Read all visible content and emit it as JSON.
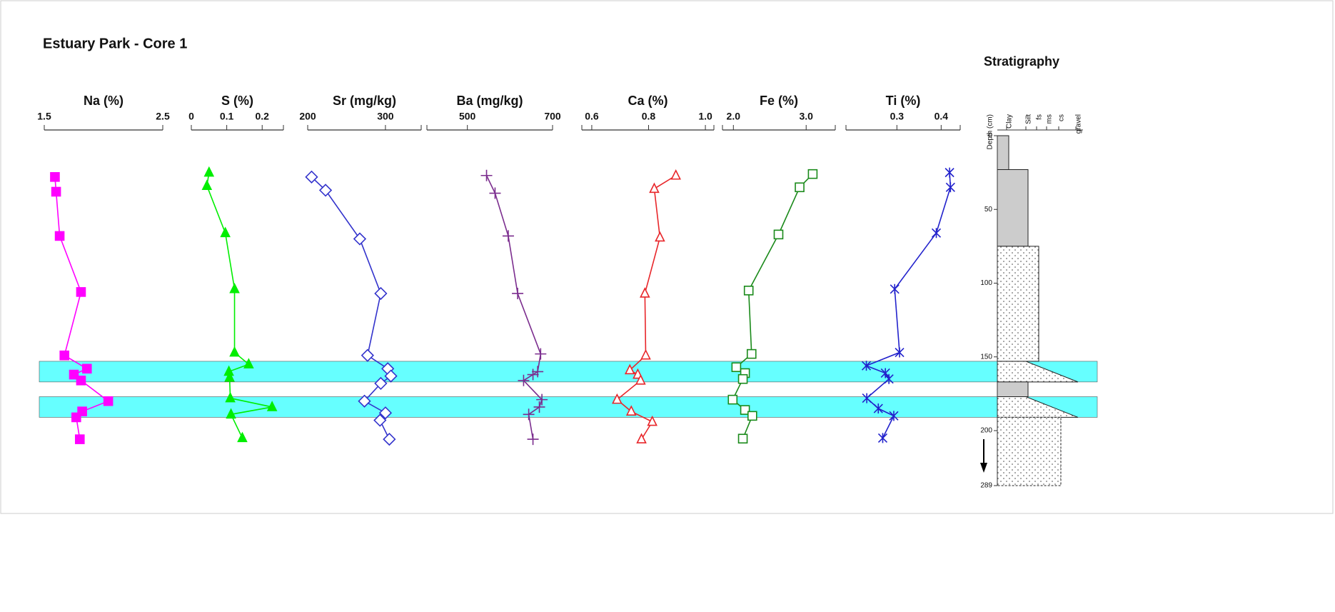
{
  "title": "Estuary Park - Core 1",
  "chart_data": [
    {
      "type": "line",
      "title": "Na (%)",
      "xlim": [
        1.5,
        2.5
      ],
      "xticks": [
        1.5,
        2.5
      ],
      "ylim": [
        0,
        289
      ],
      "color": "#ff00ff",
      "marker": "square-filled",
      "y": [
        28,
        38,
        68,
        106,
        149,
        158,
        162,
        166,
        180,
        187,
        191,
        214
      ],
      "values": [
        1.59,
        1.6,
        1.63,
        1.81,
        1.67,
        1.86,
        1.75,
        1.81,
        2.04,
        1.82,
        1.77,
        1.8
      ]
    },
    {
      "type": "line",
      "title": "S (%)",
      "xlim": [
        0,
        0.26
      ],
      "xticks": [
        0,
        0.1,
        0.2
      ],
      "ylim": [
        0,
        289
      ],
      "color": "#00ee00",
      "marker": "triangle-filled",
      "y": [
        25,
        34,
        66,
        104,
        147,
        155,
        160,
        164,
        178,
        184,
        189,
        212
      ],
      "values": [
        0.05,
        0.044,
        0.096,
        0.122,
        0.122,
        0.162,
        0.106,
        0.108,
        0.11,
        0.228,
        0.112,
        0.144
      ]
    },
    {
      "type": "line",
      "title": "Sr (mg/kg)",
      "xlim": [
        200,
        346
      ],
      "xticks": [
        200,
        300
      ],
      "ylim": [
        0,
        289
      ],
      "color": "#3333cc",
      "marker": "diamond-open",
      "y": [
        28,
        37,
        70,
        107,
        149,
        158,
        163,
        168,
        180,
        188,
        193,
        214
      ],
      "values": [
        205,
        223,
        267,
        294,
        277,
        303,
        307,
        294,
        273,
        300,
        293,
        305
      ]
    },
    {
      "type": "line",
      "title": "Ba (mg/kg)",
      "xlim": [
        405,
        700
      ],
      "xticks": [
        500,
        700
      ],
      "ylim": [
        0,
        289
      ],
      "color": "#7b2d8e",
      "marker": "plus",
      "y": [
        27,
        39,
        68,
        107,
        148,
        160,
        162,
        166,
        179,
        184,
        189,
        214
      ],
      "values": [
        545,
        565,
        596,
        618,
        672,
        665,
        654,
        632,
        675,
        669,
        644,
        654
      ]
    },
    {
      "type": "line",
      "title": "Ca (%)",
      "xlim": [
        0.565,
        1.03
      ],
      "xticks": [
        0.6,
        0.8,
        {
          "value": 1,
          "label": "1.0"
        }
      ],
      "ylim": [
        0,
        289
      ],
      "color": "#e8262a",
      "marker": "triangle-open",
      "y": [
        27,
        36,
        69,
        107,
        149,
        159,
        162,
        166,
        179,
        187,
        194,
        214
      ],
      "values": [
        0.896,
        0.82,
        0.84,
        0.787,
        0.79,
        0.734,
        0.762,
        0.772,
        0.689,
        0.739,
        0.813,
        0.775
      ]
    },
    {
      "type": "line",
      "title": "Fe (%)",
      "xlim": [
        1.85,
        3.4
      ],
      "xticks": [
        {
          "value": 2,
          "label": "2.0"
        },
        {
          "value": 3,
          "label": "3.0"
        }
      ],
      "ylim": [
        0,
        289
      ],
      "color": "#1a8a1a",
      "marker": "square-open",
      "y": [
        26,
        35,
        67,
        105,
        148,
        157,
        161,
        165,
        179,
        186,
        190,
        213
      ],
      "values": [
        3.09,
        2.91,
        2.62,
        2.21,
        2.25,
        2.04,
        2.16,
        2.13,
        1.99,
        2.16,
        2.26,
        2.13
      ]
    },
    {
      "type": "line",
      "title": "Ti (%)",
      "xlim": [
        0.185,
        0.443
      ],
      "xticks": [
        0.3,
        0.4
      ],
      "ylim": [
        0,
        289
      ],
      "color": "#2222cc",
      "marker": "star",
      "y": [
        25,
        35,
        66,
        104,
        147,
        156,
        161,
        165,
        178,
        185,
        190,
        212
      ],
      "values": [
        0.419,
        0.421,
        0.389,
        0.295,
        0.306,
        0.231,
        0.274,
        0.282,
        0.232,
        0.258,
        0.293,
        0.268
      ]
    },
    {
      "type": "stratigraphy",
      "title": "Stratigraphy",
      "depth_label": "Depth (cm)",
      "grain_classes": [
        "Clay",
        "Silt",
        "fs",
        "ms",
        "cs",
        "gravel"
      ],
      "ylim": [
        0,
        289
      ],
      "yticks": [
        0,
        50,
        100,
        150,
        200,
        289
      ],
      "bands": [
        [
          153,
          167
        ],
        [
          177,
          191
        ]
      ],
      "band_color": "#66ffff",
      "layers": [
        {
          "top": 0,
          "bottom": 23,
          "grain": "Clay",
          "fill": "#cccccc"
        },
        {
          "top": 23,
          "bottom": 75,
          "grain": "Silt",
          "fill": "#cccccc"
        },
        {
          "top": 75,
          "bottom": 153,
          "grain": "fs",
          "fill": "dots"
        },
        {
          "top": 153,
          "bottom": 167,
          "grain": "gravel",
          "fill": "dots",
          "shape": "wedge"
        },
        {
          "top": 167,
          "bottom": 177,
          "grain": "Silt",
          "fill": "#cccccc"
        },
        {
          "top": 177,
          "bottom": 191,
          "grain": "gravel",
          "fill": "dots",
          "shape": "wedge"
        },
        {
          "top": 191,
          "bottom": 289,
          "grain": "cs",
          "fill": "dots"
        }
      ]
    }
  ]
}
